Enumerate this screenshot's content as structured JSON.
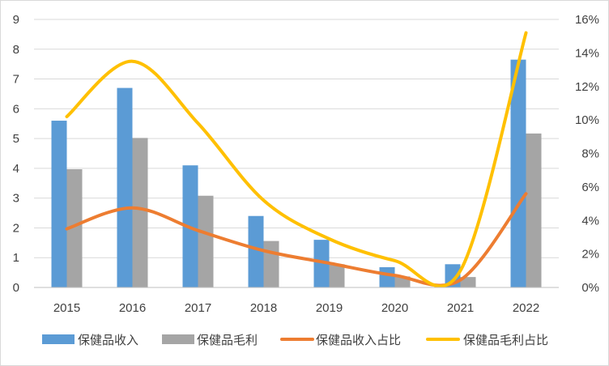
{
  "colors": {
    "revenue": "#5B9BD5",
    "profit": "#A5A5A5",
    "revenue_share": "#ED7D31",
    "profit_share": "#FFC000",
    "grid": "#d9d9d9",
    "axis": "#bfbfbf",
    "text": "#404040"
  },
  "chart_data": {
    "type": "bar",
    "categories": [
      "2015",
      "2016",
      "2017",
      "2018",
      "2019",
      "2020",
      "2021",
      "2022"
    ],
    "ylim": [
      0,
      9
    ],
    "y_ticks": [
      "0",
      "1",
      "2",
      "3",
      "4",
      "5",
      "6",
      "7",
      "8",
      "9"
    ],
    "y2lim": [
      0,
      0.16
    ],
    "y2_ticks": [
      "0%",
      "2%",
      "4%",
      "6%",
      "8%",
      "10%",
      "12%",
      "14%",
      "16%"
    ],
    "grid": true,
    "legend_position": "bottom",
    "series": [
      {
        "name": "保健品收入",
        "type": "bar",
        "axis": "left",
        "values": [
          5.6,
          6.7,
          4.1,
          2.4,
          1.6,
          0.68,
          0.78,
          7.65
        ]
      },
      {
        "name": "保健品毛利",
        "type": "bar",
        "axis": "left",
        "values": [
          3.97,
          5.02,
          3.08,
          1.56,
          0.78,
          0.37,
          0.35,
          5.17
        ]
      },
      {
        "name": "保健品收入占比",
        "type": "line",
        "axis": "right",
        "values": [
          0.035,
          0.0475,
          0.034,
          0.022,
          0.0145,
          0.0072,
          0.0045,
          0.056
        ]
      },
      {
        "name": "保健品毛利占比",
        "type": "line",
        "axis": "right",
        "values": [
          0.102,
          0.135,
          0.098,
          0.052,
          0.029,
          0.016,
          0.01,
          0.152
        ]
      }
    ]
  }
}
